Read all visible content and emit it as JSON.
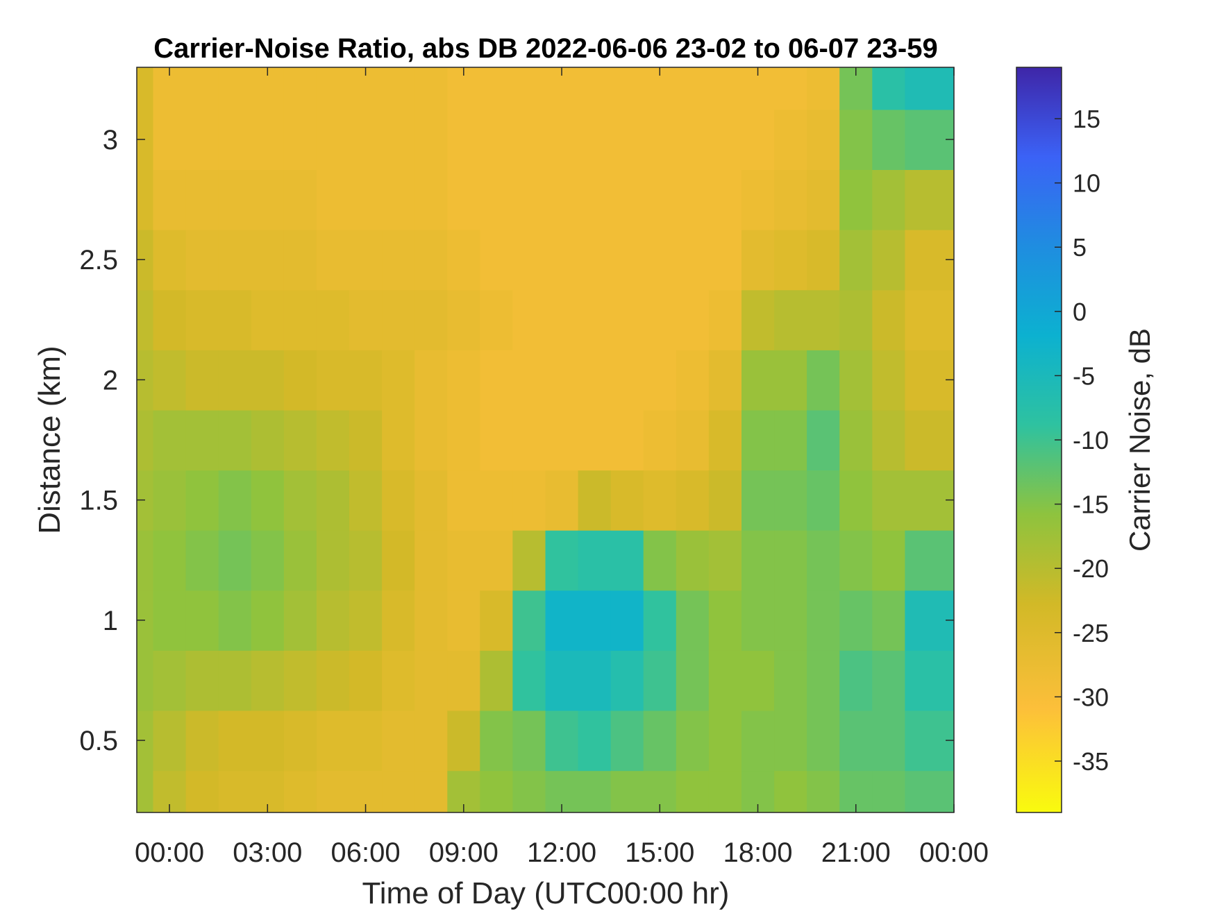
{
  "chart_data": {
    "type": "heatmap",
    "title": "Carrier-Noise Ratio, abs DB 2022-06-06 23-02 to 06-07 23-59",
    "xlabel": "Time of Day (UTC00:00 hr)",
    "ylabel": "Distance (km)",
    "colorbar_label": "Carrier Noise, dB",
    "colormap": "parula",
    "colormap_reversed": true,
    "x_unit": "hour",
    "xlim": [
      -1,
      24
    ],
    "ylim": [
      0.2,
      3.3
    ],
    "clim": [
      -39,
      19
    ],
    "x_ticks": [
      0,
      3,
      6,
      9,
      12,
      15,
      18,
      21,
      24
    ],
    "x_tick_labels": [
      "00:00",
      "03:00",
      "06:00",
      "09:00",
      "12:00",
      "15:00",
      "18:00",
      "21:00",
      "00:00"
    ],
    "y_ticks": [
      0.5,
      1,
      1.5,
      2,
      2.5,
      3
    ],
    "y_tick_labels": [
      "0.5",
      "1",
      "1.5",
      "2",
      "2.5",
      "3"
    ],
    "colorbar_ticks": [
      15,
      10,
      5,
      0,
      -5,
      -10,
      -15,
      -20,
      -25,
      -30,
      -35
    ],
    "colorbar_tick_labels": [
      "15",
      "10",
      "5",
      "0",
      "-5",
      "-10",
      "-15",
      "-20",
      "-25",
      "-30",
      "-35"
    ],
    "time_hours": [
      -1,
      0,
      1,
      2,
      3,
      4,
      5,
      6,
      7,
      8,
      9,
      10,
      11,
      12,
      13,
      14,
      15,
      16,
      17,
      18,
      19,
      20,
      21,
      22,
      23,
      24
    ],
    "distance_km": [
      0.25,
      0.5,
      0.75,
      1.0,
      1.25,
      1.5,
      1.75,
      2.0,
      2.25,
      2.5,
      2.75,
      3.0,
      3.25
    ],
    "cnr_db": [
      [
        -18,
        -18,
        -17,
        -17,
        -17,
        -18,
        -19,
        -20,
        -21,
        -22,
        -24,
        -24,
        -24
      ],
      [
        -21,
        -20,
        -18,
        -16,
        -16,
        -17,
        -18,
        -21,
        -23,
        -25,
        -27,
        -28,
        -28
      ],
      [
        -23,
        -22,
        -19,
        -16,
        -15,
        -16,
        -18,
        -22,
        -24,
        -26,
        -27,
        -28,
        -28
      ],
      [
        -24,
        -23,
        -19,
        -15,
        -14,
        -15,
        -18,
        -22,
        -24,
        -26,
        -27,
        -28,
        -28
      ],
      [
        -24,
        -23,
        -20,
        -16,
        -15,
        -16,
        -19,
        -22,
        -25,
        -26,
        -27,
        -28,
        -28
      ],
      [
        -25,
        -24,
        -21,
        -18,
        -17,
        -18,
        -20,
        -23,
        -25,
        -26,
        -27,
        -28,
        -28
      ],
      [
        -26,
        -25,
        -22,
        -20,
        -19,
        -19,
        -21,
        -24,
        -25,
        -27,
        -28,
        -28,
        -28
      ],
      [
        -26,
        -25,
        -23,
        -21,
        -20,
        -21,
        -22,
        -24,
        -26,
        -27,
        -28,
        -28,
        -28
      ],
      [
        -26,
        -26,
        -25,
        -24,
        -23,
        -24,
        -25,
        -25,
        -26,
        -27,
        -28,
        -28,
        -28
      ],
      [
        -26,
        -26,
        -26,
        -26,
        -26,
        -26,
        -27,
        -27,
        -26,
        -27,
        -28,
        -28,
        -28
      ],
      [
        -18,
        -22,
        -26,
        -27,
        -27,
        -28,
        -28,
        -28,
        -27,
        -28,
        -29,
        -29,
        -29
      ],
      [
        -16,
        -15,
        -19,
        -24,
        -27,
        -28,
        -29,
        -29,
        -28,
        -29,
        -29,
        -29,
        -29
      ],
      [
        -15,
        -14,
        -9,
        -10,
        -20,
        -28,
        -29,
        -29,
        -29,
        -29,
        -29,
        -29,
        -29
      ],
      [
        -14,
        -10,
        -5,
        -3,
        -9,
        -27,
        -29,
        -29,
        -29,
        -29,
        -29,
        -29,
        -29
      ],
      [
        -14,
        -9,
        -5,
        -3,
        -8,
        -22,
        -29,
        -29,
        -29,
        -29,
        -29,
        -29,
        -29
      ],
      [
        -15,
        -11,
        -7,
        -3,
        -8,
        -24,
        -29,
        -29,
        -29,
        -29,
        -29,
        -29,
        -29
      ],
      [
        -15,
        -13,
        -10,
        -9,
        -15,
        -25,
        -28,
        -29,
        -29,
        -29,
        -29,
        -29,
        -29
      ],
      [
        -16,
        -15,
        -14,
        -14,
        -17,
        -24,
        -27,
        -28,
        -29,
        -29,
        -29,
        -29,
        -29
      ],
      [
        -16,
        -16,
        -16,
        -16,
        -18,
        -22,
        -24,
        -26,
        -28,
        -29,
        -29,
        -29,
        -29
      ],
      [
        -15,
        -15,
        -16,
        -15,
        -15,
        -14,
        -15,
        -17,
        -21,
        -26,
        -28,
        -29,
        -29
      ],
      [
        -16,
        -15,
        -15,
        -15,
        -15,
        -14,
        -15,
        -17,
        -20,
        -25,
        -27,
        -28,
        -29
      ],
      [
        -15,
        -14,
        -14,
        -14,
        -14,
        -13,
        -12,
        -14,
        -20,
        -24,
        -26,
        -27,
        -28
      ],
      [
        -13,
        -12,
        -11,
        -13,
        -15,
        -16,
        -17,
        -18,
        -19,
        -18,
        -16,
        -15,
        -14
      ],
      [
        -13,
        -12,
        -12,
        -14,
        -16,
        -18,
        -20,
        -21,
        -22,
        -20,
        -18,
        -13,
        -8
      ],
      [
        -12,
        -10,
        -8,
        -6,
        -12,
        -18,
        -22,
        -24,
        -25,
        -24,
        -20,
        -12,
        -6
      ],
      [
        -12,
        -10,
        -8,
        -6,
        -12,
        -18,
        -22,
        -24,
        -25,
        -24,
        -20,
        -12,
        -6
      ]
    ]
  }
}
